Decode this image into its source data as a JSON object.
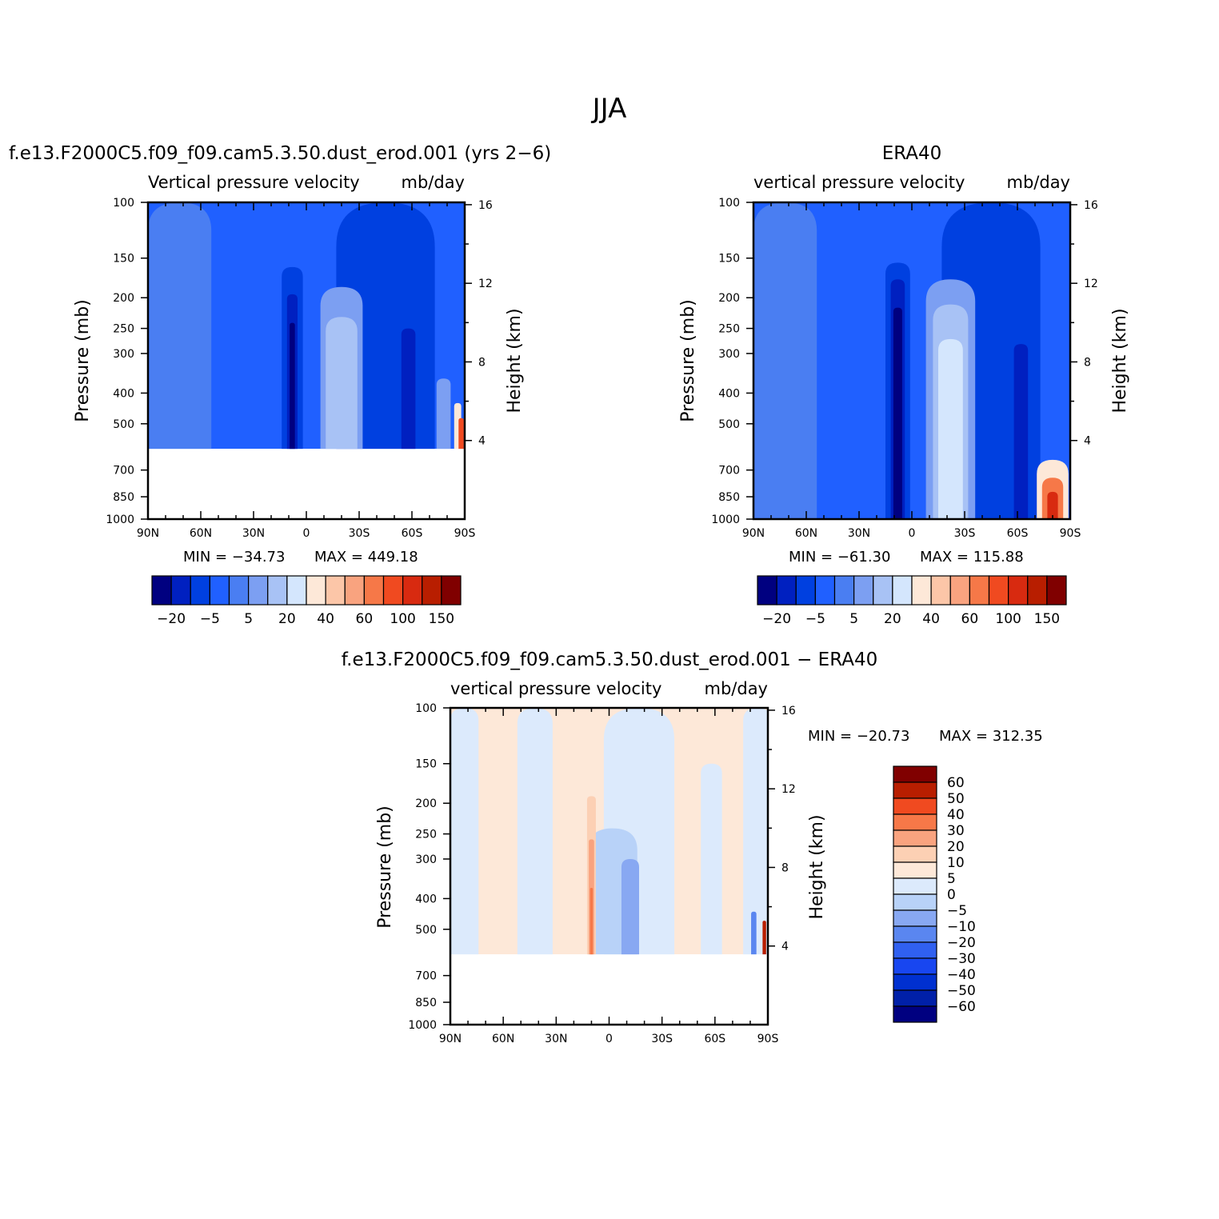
{
  "figure": {
    "season": "JJA"
  },
  "colors": {
    "scale": [
      "#000080",
      "#0020c0",
      "#0040e0",
      "#2060ff",
      "#4a7ef2",
      "#7c9ff2",
      "#a8c2f5",
      "#d4e6fd",
      "#fde8d8",
      "#fcc6a8",
      "#f9a37f",
      "#f67848",
      "#f04a20",
      "#d82a10",
      "#b81e00",
      "#800000"
    ],
    "diff_scale": [
      "#000080",
      "#0020a8",
      "#0030d0",
      "#1846f0",
      "#3060f0",
      "#5a86f0",
      "#88a8f2",
      "#b8d2f8",
      "#dceafc",
      "#fde8d8",
      "#fcd0b4",
      "#f9a37f",
      "#f67848",
      "#f04a20",
      "#b81e00",
      "#800000"
    ]
  },
  "chart_data": [
    {
      "type": "heatmap",
      "panel": "model",
      "title": "f.e13.F2000C5.f09_f09.cam5.3.50.dust_erod.001 (yrs 2−6)",
      "variable": "Vertical pressure velocity",
      "units": "mb/day",
      "ylabel": "Pressure (mb)",
      "ylabel_right": "Height (km)",
      "x_ticks": [
        "90N",
        "60N",
        "30N",
        "0",
        "30S",
        "60S",
        "90S"
      ],
      "y_ticks": [
        "100",
        "150",
        "200",
        "250",
        "300",
        "400",
        "500",
        "700",
        "850",
        "1000"
      ],
      "y_ticks_right": [
        "16",
        "12",
        "8",
        "4"
      ],
      "ylim": [
        1000,
        100
      ],
      "data_bottom_pressure": 600,
      "min_text": "MIN = −34.73",
      "max_text": "MAX = 449.18",
      "colorbar_labels": [
        "−20",
        "−5",
        "5",
        "20",
        "40",
        "60",
        "100",
        "150"
      ],
      "features": [
        {
          "kind": "background",
          "level": 3
        },
        {
          "lat": 72,
          "width": 18,
          "top_p": 100,
          "level": 4
        },
        {
          "lat": -45,
          "width": 28,
          "top_p": 100,
          "level": 2
        },
        {
          "lat": 8,
          "width": 6,
          "top_p": 160,
          "level": 2
        },
        {
          "lat": 8,
          "width": 3,
          "top_p": 195,
          "level": 1
        },
        {
          "lat": 8,
          "width": 1.5,
          "top_p": 240,
          "level": 0
        },
        {
          "lat": -20,
          "width": 12,
          "top_p": 185,
          "level": 5
        },
        {
          "lat": -20,
          "width": 9,
          "top_p": 230,
          "level": 6
        },
        {
          "lat": -58,
          "width": 4,
          "top_p": 250,
          "level": 1
        },
        {
          "lat": -78,
          "width": 4,
          "top_p": 360,
          "level": 5
        },
        {
          "lat": -86,
          "width": 2,
          "top_p": 430,
          "level": 8
        },
        {
          "lat": -88,
          "width": 1.5,
          "top_p": 480,
          "level": 12
        }
      ]
    },
    {
      "type": "heatmap",
      "panel": "obs",
      "title": "ERA40",
      "variable": "vertical pressure velocity",
      "units": "mb/day",
      "ylabel": "Pressure (mb)",
      "ylabel_right": "Height (km)",
      "x_ticks": [
        "90N",
        "60N",
        "30N",
        "0",
        "30S",
        "60S",
        "90S"
      ],
      "y_ticks": [
        "100",
        "150",
        "200",
        "250",
        "300",
        "400",
        "500",
        "700",
        "850",
        "1000"
      ],
      "y_ticks_right": [
        "16",
        "12",
        "8",
        "4"
      ],
      "ylim": [
        1000,
        100
      ],
      "data_bottom_pressure": 1000,
      "min_text": "MIN = −61.30",
      "max_text": "MAX = 115.88",
      "colorbar_labels": [
        "−20",
        "−5",
        "5",
        "20",
        "40",
        "60",
        "100",
        "150"
      ],
      "features": [
        {
          "kind": "background",
          "level": 3
        },
        {
          "lat": 72,
          "width": 18,
          "top_p": 100,
          "level": 4
        },
        {
          "lat": -45,
          "width": 28,
          "top_p": 100,
          "level": 2
        },
        {
          "lat": 8,
          "width": 7,
          "top_p": 155,
          "level": 2
        },
        {
          "lat": 8,
          "width": 4,
          "top_p": 175,
          "level": 1
        },
        {
          "lat": 8,
          "width": 2.5,
          "top_p": 215,
          "level": 0
        },
        {
          "lat": -22,
          "width": 14,
          "top_p": 175,
          "level": 5
        },
        {
          "lat": -22,
          "width": 10,
          "top_p": 210,
          "level": 6
        },
        {
          "lat": -22,
          "width": 7,
          "top_p": 270,
          "level": 7
        },
        {
          "lat": -62,
          "width": 4,
          "top_p": 280,
          "level": 1
        },
        {
          "lat": -80,
          "width": 9,
          "top_p": 650,
          "level": 8
        },
        {
          "lat": -80,
          "width": 6,
          "top_p": 740,
          "level": 11
        },
        {
          "lat": -80,
          "width": 3,
          "top_p": 820,
          "level": 13
        }
      ]
    },
    {
      "type": "heatmap",
      "panel": "difference",
      "title": "f.e13.F2000C5.f09_f09.cam5.3.50.dust_erod.001 − ERA40",
      "variable": "vertical pressure velocity",
      "units": "mb/day",
      "ylabel": "Pressure (mb)",
      "ylabel_right": "Height (km)",
      "x_ticks": [
        "90N",
        "60N",
        "30N",
        "0",
        "30S",
        "60S",
        "90S"
      ],
      "y_ticks": [
        "100",
        "150",
        "200",
        "250",
        "300",
        "400",
        "500",
        "700",
        "850",
        "1000"
      ],
      "y_ticks_right": [
        "16",
        "12",
        "8",
        "4"
      ],
      "ylim": [
        1000,
        100
      ],
      "data_bottom_pressure": 600,
      "min_text": "MIN = −20.73",
      "max_text": "MAX = 312.35",
      "colorbar_labels": [
        "60",
        "50",
        "40",
        "30",
        "20",
        "10",
        "5",
        "0",
        "−5",
        "−10",
        "−20",
        "−30",
        "−40",
        "−50",
        "−60"
      ],
      "features": [
        {
          "kind": "background",
          "level": 9
        },
        {
          "lat": 82,
          "width": 8,
          "top_p": 100,
          "level": 8
        },
        {
          "lat": 42,
          "width": 10,
          "top_p": 100,
          "level": 8
        },
        {
          "lat": -17,
          "width": 20,
          "top_p": 100,
          "level": 8
        },
        {
          "lat": -58,
          "width": 6,
          "top_p": 150,
          "level": 8
        },
        {
          "lat": -84,
          "width": 8,
          "top_p": 100,
          "level": 8
        },
        {
          "lat": -2,
          "width": 14,
          "top_p": 240,
          "level": 7
        },
        {
          "lat": -12,
          "width": 5,
          "top_p": 300,
          "level": 6
        },
        {
          "lat": 10,
          "width": 2.5,
          "top_p": 190,
          "level": 10
        },
        {
          "lat": 10,
          "width": 1.5,
          "top_p": 260,
          "level": 11
        },
        {
          "lat": 10,
          "width": 0.8,
          "top_p": 370,
          "level": 12
        },
        {
          "lat": -82,
          "width": 1.5,
          "top_p": 440,
          "level": 5
        },
        {
          "lat": -88,
          "width": 1,
          "top_p": 470,
          "level": 14
        }
      ]
    }
  ]
}
